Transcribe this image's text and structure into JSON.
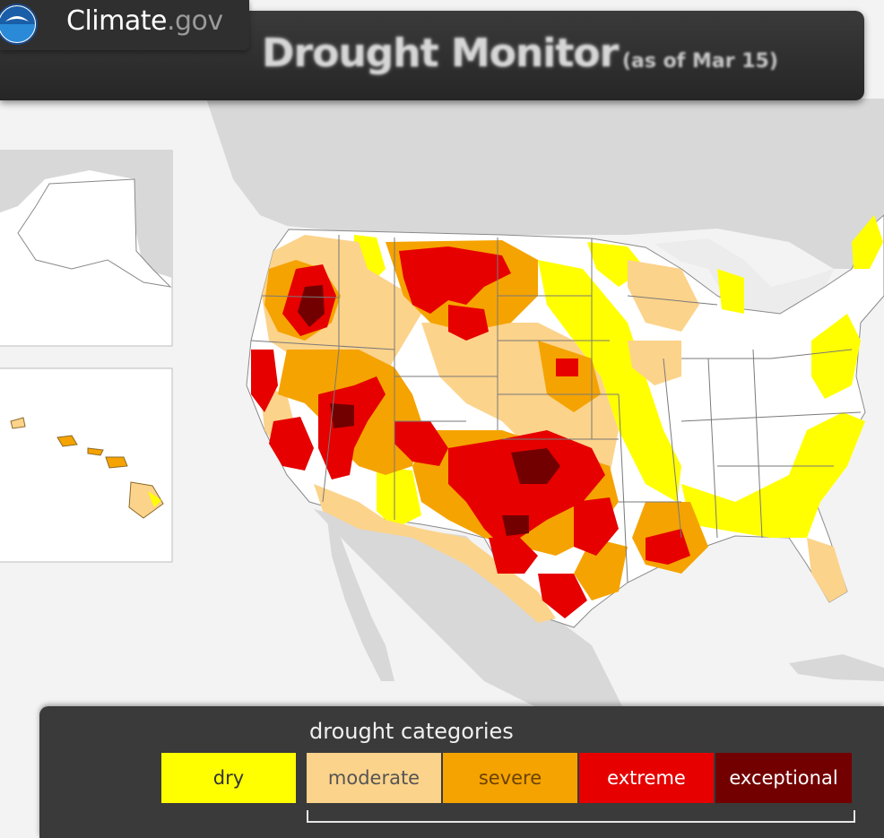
{
  "brand": {
    "name_main": "Climate",
    "name_suffix": ".gov",
    "logo_icon": "noaa-logo-icon"
  },
  "header": {
    "title": "Drought Monitor",
    "subtitle": "(as of Mar 15)"
  },
  "legend": {
    "title": "drought categories",
    "categories": [
      {
        "label": "dry",
        "color": "#ffff00",
        "text_color": "#333333"
      },
      {
        "label": "moderate",
        "color": "#fcd38b",
        "text_color": "#555555"
      },
      {
        "label": "severe",
        "color": "#f5a300",
        "text_color": "#6b4200"
      },
      {
        "label": "extreme",
        "color": "#e60000",
        "text_color": "#ffffff"
      },
      {
        "label": "exceptional",
        "color": "#730000",
        "text_color": "#ffffff"
      }
    ]
  },
  "map": {
    "land_color": "#ffffff",
    "other_land_color": "#d6d6d6",
    "water_color": "#f3f3f3"
  }
}
